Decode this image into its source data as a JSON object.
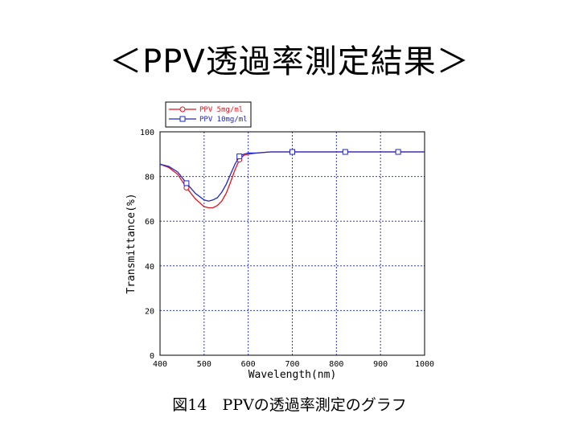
{
  "slide": {
    "title": "＜PPV透過率測定結果＞",
    "caption": "図14　PPVの透過率測定のグラフ"
  },
  "chart_data": {
    "type": "line",
    "xlabel": "Wavelength(nm)",
    "ylabel": "Transmittance(%)",
    "xlim": [
      400,
      1000
    ],
    "ylim": [
      0,
      100
    ],
    "x_ticks": [
      400,
      500,
      600,
      700,
      800,
      900,
      1000
    ],
    "y_ticks": [
      0,
      20,
      40,
      60,
      80,
      100
    ],
    "grid": true,
    "legend_position": "top-left above plot",
    "series": [
      {
        "name": "PPV 5mg/ml",
        "color": "#e0141e",
        "marker": "circle",
        "x": [
          400,
          420,
          440,
          460,
          480,
          500,
          510,
          520,
          530,
          540,
          550,
          560,
          570,
          580,
          590,
          600,
          620,
          650,
          700,
          750,
          800,
          850,
          900,
          950,
          1000
        ],
        "y": [
          85.5,
          84,
          81,
          75,
          70,
          66.5,
          66,
          66,
          67,
          69,
          72.5,
          77.5,
          83,
          87.5,
          89.5,
          90,
          90.5,
          91,
          91,
          91,
          91,
          91,
          91,
          91,
          91
        ],
        "marker_x": [
          460,
          580,
          700,
          820,
          940
        ]
      },
      {
        "name": "PPV 10mg/ml",
        "color": "#1e28c8",
        "marker": "square",
        "x": [
          400,
          420,
          440,
          460,
          480,
          500,
          510,
          520,
          530,
          540,
          550,
          560,
          570,
          580,
          590,
          600,
          620,
          650,
          700,
          750,
          800,
          850,
          900,
          950,
          1000
        ],
        "y": [
          85.5,
          84.5,
          82,
          77,
          72.5,
          69.5,
          69,
          69.5,
          70.5,
          73,
          76.5,
          81,
          85.5,
          89,
          90,
          90.5,
          90.5,
          91,
          91,
          91,
          91,
          91,
          91,
          91,
          91
        ],
        "marker_x": [
          460,
          580,
          700,
          820,
          940
        ]
      }
    ]
  }
}
